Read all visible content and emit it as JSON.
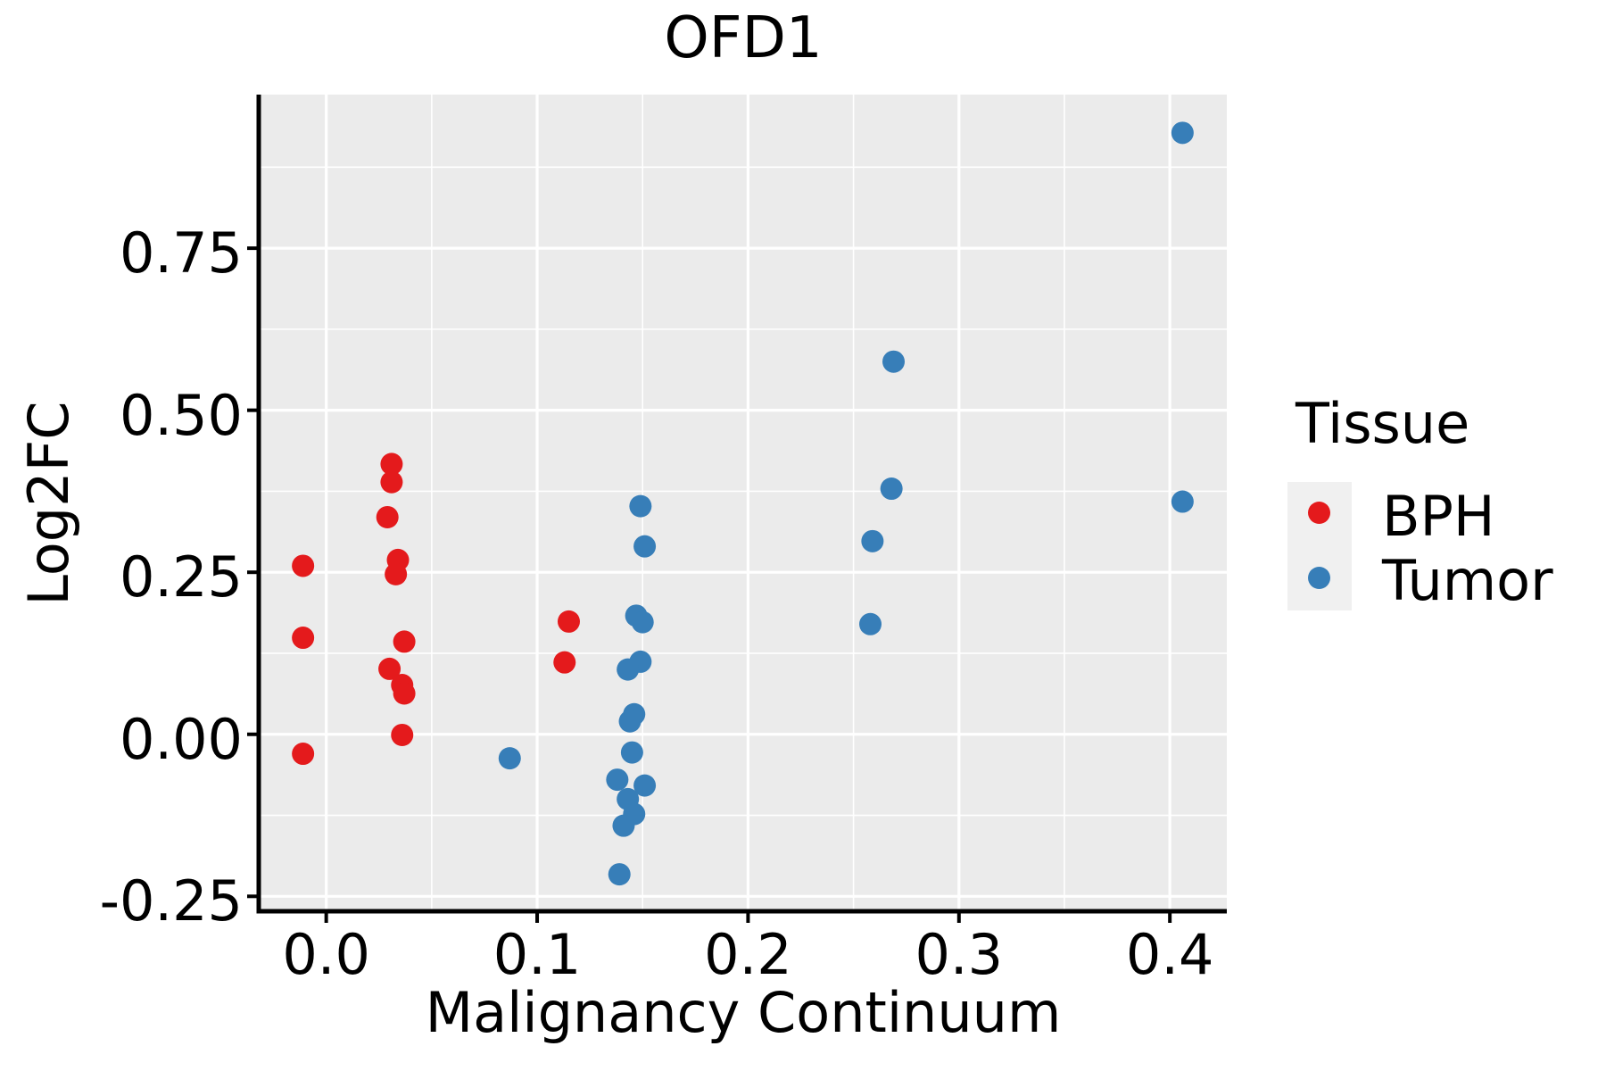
{
  "title": "OFD1",
  "legend": {
    "title": "Tissue",
    "items": [
      {
        "label": "BPH",
        "color": "#E41A1C"
      },
      {
        "label": "Tumor",
        "color": "#377EB8"
      }
    ]
  },
  "colors": {
    "panel_bg": "#EBEBEB",
    "grid_major": "#FFFFFF",
    "grid_minor": "#FFFFFF",
    "axis_line": "#000000",
    "legend_key_bg": "#F0F0F0"
  },
  "chart_data": {
    "type": "scatter",
    "title": "OFD1",
    "xlabel": "Malignancy Continuum",
    "ylabel": "Log2FC",
    "xlim": [
      -0.032,
      0.427
    ],
    "ylim": [
      -0.273,
      0.987
    ],
    "x_ticks": [
      0.0,
      0.1,
      0.2,
      0.3,
      0.4
    ],
    "x_tick_labels": [
      "0.0",
      "0.1",
      "0.2",
      "0.3",
      "0.4"
    ],
    "y_ticks": [
      -0.25,
      0.0,
      0.25,
      0.5,
      0.75
    ],
    "y_tick_labels": [
      "-0.25",
      "0.00",
      "0.25",
      "0.50",
      "0.75"
    ],
    "grid": "major+minor",
    "legend_position": "right",
    "point_radius_px": 12.5,
    "series": [
      {
        "name": "BPH",
        "color": "#E41A1C",
        "points": [
          [
            -0.011,
            0.26
          ],
          [
            -0.011,
            0.149
          ],
          [
            -0.011,
            -0.03
          ],
          [
            0.031,
            0.417
          ],
          [
            0.031,
            0.389
          ],
          [
            0.029,
            0.335
          ],
          [
            0.034,
            0.269
          ],
          [
            0.033,
            0.247
          ],
          [
            0.037,
            0.143
          ],
          [
            0.03,
            0.101
          ],
          [
            0.036,
            0.076
          ],
          [
            0.037,
            0.063
          ],
          [
            0.036,
            -0.001
          ],
          [
            0.115,
            0.174
          ],
          [
            0.113,
            0.111
          ]
        ]
      },
      {
        "name": "Tumor",
        "color": "#377EB8",
        "points": [
          [
            0.087,
            -0.037
          ],
          [
            0.149,
            0.352
          ],
          [
            0.151,
            0.29
          ],
          [
            0.147,
            0.183
          ],
          [
            0.15,
            0.173
          ],
          [
            0.149,
            0.112
          ],
          [
            0.143,
            0.1
          ],
          [
            0.146,
            0.031
          ],
          [
            0.144,
            0.02
          ],
          [
            0.145,
            -0.028
          ],
          [
            0.138,
            -0.07
          ],
          [
            0.151,
            -0.079
          ],
          [
            0.143,
            -0.1
          ],
          [
            0.146,
            -0.123
          ],
          [
            0.141,
            -0.141
          ],
          [
            0.139,
            -0.216
          ],
          [
            0.258,
            0.17
          ],
          [
            0.259,
            0.298
          ],
          [
            0.268,
            0.379
          ],
          [
            0.269,
            0.575
          ],
          [
            0.406,
            0.359
          ],
          [
            0.406,
            0.928
          ]
        ]
      }
    ]
  }
}
